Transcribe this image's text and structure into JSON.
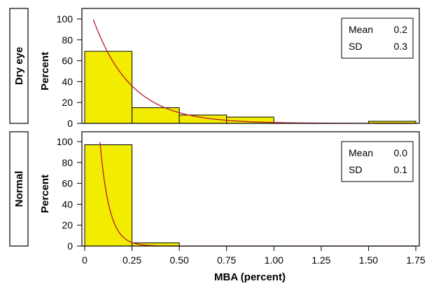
{
  "chart_data": {
    "type": "bar",
    "title": "",
    "xlabel": "MBA (percent)",
    "xlim": [
      0,
      1.75
    ],
    "x_ticks": [
      "0",
      "0.25",
      "0.50",
      "0.75",
      "1.00",
      "1.25",
      "1.50",
      "1.75"
    ],
    "bar_color": "#f2ec00",
    "curve_color": "#b81c2c",
    "legend": "none",
    "grid": false,
    "panels": [
      {
        "group": "Dry eye",
        "ylabel": "Percent",
        "ylim": [
          0,
          100
        ],
        "y_ticks": [
          "0",
          "20",
          "40",
          "60",
          "80",
          "100"
        ],
        "bins": [
          {
            "start": 0.0,
            "end": 0.25,
            "value": 69
          },
          {
            "start": 0.25,
            "end": 0.5,
            "value": 15
          },
          {
            "start": 0.5,
            "end": 0.75,
            "value": 8
          },
          {
            "start": 0.75,
            "end": 1.0,
            "value": 6
          },
          {
            "start": 1.5,
            "end": 1.75,
            "value": 2
          }
        ],
        "fit_curve": {
          "type": "exponential",
          "mean": 0.2
        },
        "stats": [
          {
            "label": "Mean",
            "value": "0.2"
          },
          {
            "label": "SD",
            "value": "0.3"
          }
        ]
      },
      {
        "group": "Normal",
        "ylabel": "Percent",
        "ylim": [
          0,
          100
        ],
        "y_ticks": [
          "0",
          "20",
          "40",
          "60",
          "80",
          "100"
        ],
        "bins": [
          {
            "start": 0.0,
            "end": 0.25,
            "value": 97
          },
          {
            "start": 0.25,
            "end": 0.5,
            "value": 3
          }
        ],
        "fit_curve": {
          "type": "exponential",
          "mean": 0.05
        },
        "stats": [
          {
            "label": "Mean",
            "value": "0.0"
          },
          {
            "label": "SD",
            "value": "0.1"
          }
        ]
      }
    ]
  }
}
